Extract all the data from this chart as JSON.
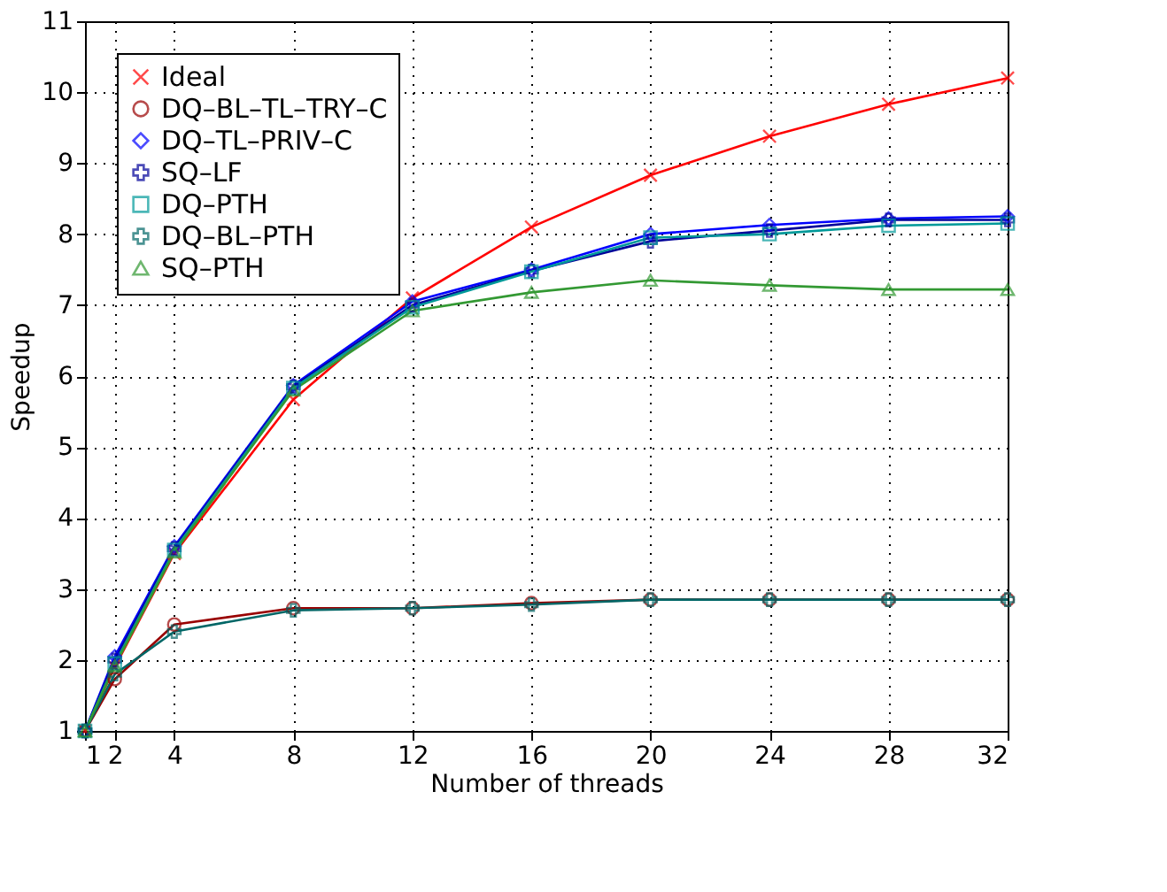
{
  "chart_data": {
    "type": "line",
    "xlabel": "Number of threads",
    "ylabel": "Speedup",
    "x": [
      1,
      2,
      4,
      8,
      12,
      16,
      20,
      24,
      28,
      32
    ],
    "xlim": [
      1,
      32
    ],
    "xticks": [
      1,
      2,
      4,
      8,
      12,
      16,
      20,
      24,
      28,
      32
    ],
    "ylim": [
      1,
      11
    ],
    "yticks": [
      1,
      2,
      3,
      4,
      5,
      6,
      7,
      8,
      9,
      10,
      11
    ],
    "grid": true,
    "legend": "top left",
    "line_style": "solid",
    "series": [
      {
        "name": "Ideal",
        "color": "#ff0000",
        "marker": "x",
        "values": [
          1,
          1.9,
          3.5,
          5.67,
          7.1,
          8.1,
          8.83,
          9.38,
          9.83,
          10.2
        ]
      },
      {
        "name": "DQ–BL–TL–TRY–C",
        "color": "#990000",
        "marker": "circle",
        "values": [
          1,
          1.73,
          2.5,
          2.73,
          2.73,
          2.8,
          2.85,
          2.85,
          2.85,
          2.85
        ]
      },
      {
        "name": "DQ–TL–PRIV–C",
        "color": "#0000ff",
        "marker": "diamond",
        "values": [
          1,
          2.05,
          3.6,
          5.87,
          7.05,
          7.5,
          8.0,
          8.13,
          8.22,
          8.25
        ]
      },
      {
        "name": "SQ–LF",
        "color": "#000099",
        "marker": "cross",
        "values": [
          1,
          2.0,
          3.57,
          5.85,
          7.0,
          7.48,
          7.9,
          8.05,
          8.2,
          8.2
        ]
      },
      {
        "name": "DQ–PTH",
        "color": "#009999",
        "marker": "square",
        "values": [
          1,
          1.95,
          3.55,
          5.83,
          6.97,
          7.47,
          7.95,
          8.0,
          8.12,
          8.15
        ]
      },
      {
        "name": "DQ–BL–PTH",
        "color": "#006666",
        "marker": "cross",
        "values": [
          1,
          1.8,
          2.4,
          2.7,
          2.73,
          2.78,
          2.85,
          2.85,
          2.85,
          2.85
        ]
      },
      {
        "name": "SQ–PTH",
        "color": "#339933",
        "marker": "triangle",
        "values": [
          1,
          1.92,
          3.52,
          5.8,
          6.92,
          7.18,
          7.35,
          7.28,
          7.22,
          7.22
        ]
      }
    ]
  }
}
